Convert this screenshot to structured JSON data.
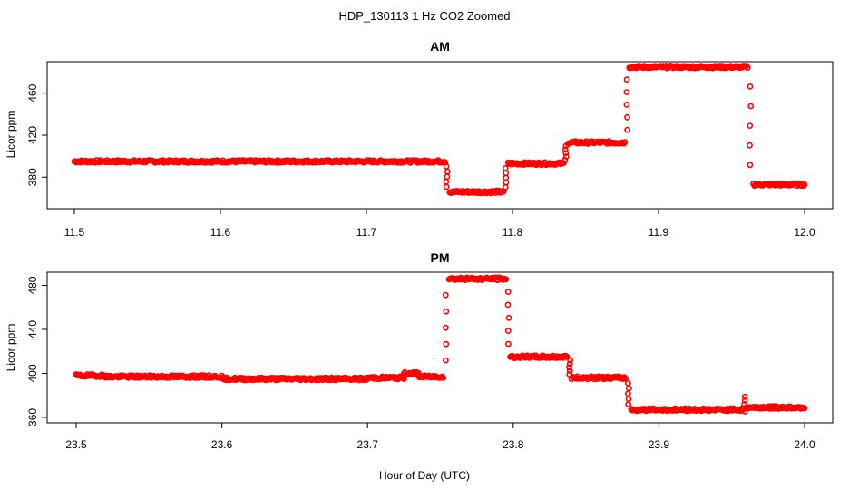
{
  "figure": {
    "title": "HDP_130113  1 Hz CO2 Zoomed",
    "xlabel": "Hour of Day (UTC)"
  },
  "chart_data": [
    {
      "type": "scatter",
      "title": "AM",
      "ylabel": "Licor ppm",
      "xlim": [
        11.5,
        12.0
      ],
      "ylim": [
        350,
        490
      ],
      "xticks": [
        "11.5",
        "11.6",
        "11.7",
        "11.8",
        "11.9",
        "12.0"
      ],
      "yticks": [
        "380",
        "420",
        "460"
      ],
      "marker": "open-circle",
      "color": "#ff0000",
      "grid": false,
      "series": [
        {
          "segments": [
            {
              "x": [
                11.5,
                11.754
              ],
              "y": 395
            },
            {
              "x": [
                11.757,
                11.794
              ],
              "y": 366
            },
            {
              "x": [
                11.797,
                11.835
              ],
              "y": 393
            },
            {
              "x": [
                11.838,
                11.877
              ],
              "y": 413
            },
            {
              "x": [
                11.88,
                11.961
              ],
              "y": 485
            },
            {
              "x": [
                11.965,
                12.0
              ],
              "y": 373
            }
          ],
          "transitions": [
            {
              "x": 11.755,
              "y": [
                395,
                366
              ]
            },
            {
              "x": 11.7955,
              "y": [
                366,
                393
              ]
            },
            {
              "x": 11.8365,
              "y": [
                393,
                413
              ]
            },
            {
              "x": 11.8785,
              "y": [
                413,
                485
              ]
            },
            {
              "x": 11.963,
              "y": [
                485,
                373
              ]
            }
          ]
        }
      ]
    },
    {
      "type": "scatter",
      "title": "PM",
      "ylabel": "Licor ppm",
      "xlim": [
        23.5,
        24.0
      ],
      "ylim": [
        355,
        492
      ],
      "xticks": [
        "23.5",
        "23.6",
        "23.7",
        "23.8",
        "23.9",
        "24.0"
      ],
      "yticks": [
        "360",
        "400",
        "440",
        "480"
      ],
      "marker": "open-circle",
      "color": "#ff0000",
      "grid": false,
      "series": [
        {
          "segments": [
            {
              "x": [
                23.5,
                23.52
              ],
              "y": 398
            },
            {
              "x": [
                23.52,
                23.6
              ],
              "y": 397
            },
            {
              "x": [
                23.6,
                23.7
              ],
              "y": 395
            },
            {
              "x": [
                23.7,
                23.725
              ],
              "y": 396
            },
            {
              "x": [
                23.725,
                23.735
              ],
              "y": 400
            },
            {
              "x": [
                23.735,
                23.752
              ],
              "y": 397
            },
            {
              "x": [
                23.756,
                23.795
              ],
              "y": 486
            },
            {
              "x": [
                23.798,
                23.837
              ],
              "y": 415
            },
            {
              "x": [
                23.84,
                23.877
              ],
              "y": 396
            },
            {
              "x": [
                23.881,
                23.958
              ],
              "y": 367
            },
            {
              "x": [
                23.96,
                24.0
              ],
              "y": 369
            }
          ],
          "transitions": [
            {
              "x": 23.754,
              "y": [
                397,
                486
              ]
            },
            {
              "x": 23.7965,
              "y": [
                486,
                415
              ]
            },
            {
              "x": 23.8385,
              "y": [
                415,
                396
              ]
            },
            {
              "x": 23.879,
              "y": [
                396,
                367
              ]
            },
            {
              "x": 23.959,
              "y": [
                362,
                382
              ]
            }
          ]
        }
      ]
    }
  ]
}
